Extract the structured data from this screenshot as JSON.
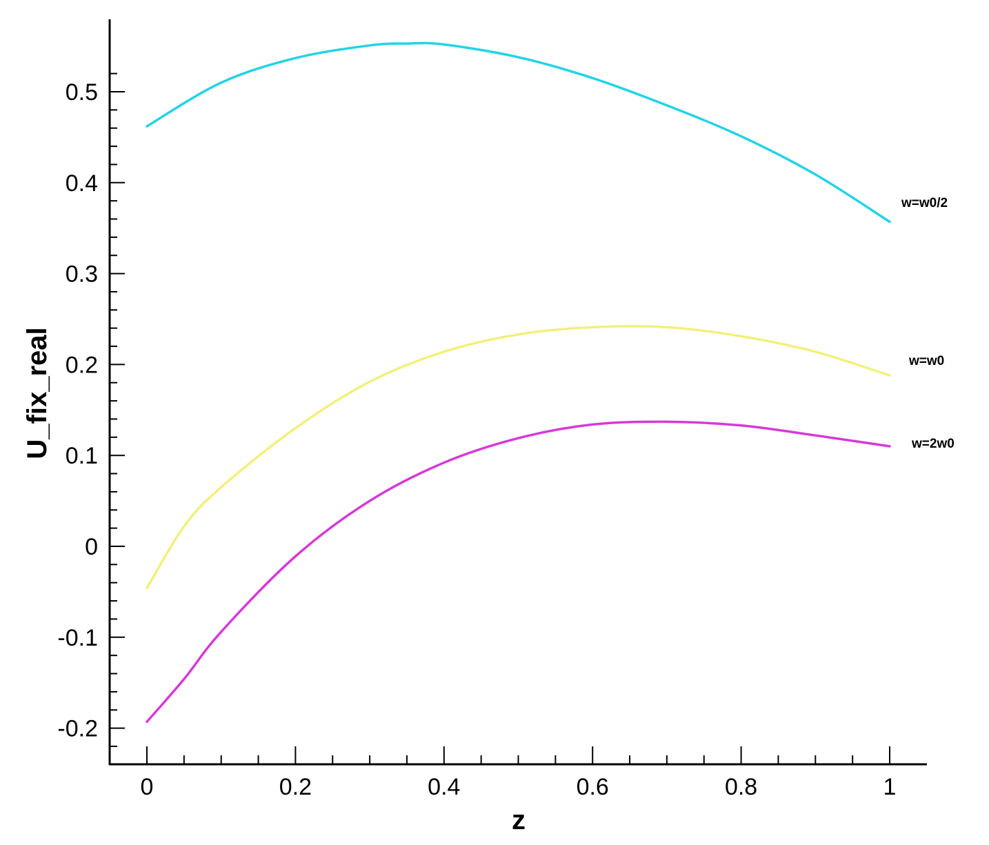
{
  "chart_data": {
    "type": "line",
    "xlabel": "z",
    "ylabel": "U_fix_real",
    "xlim": [
      -0.05,
      1.05
    ],
    "ylim": [
      -0.235,
      0.58
    ],
    "grid": false,
    "xticks": [
      0,
      0.2,
      0.4,
      0.6,
      0.8,
      1
    ],
    "xtick_labels": [
      "0",
      "0.2",
      "0.4",
      "0.6",
      "0.8",
      "1"
    ],
    "yticks": [
      -0.2,
      -0.1,
      0,
      0.1,
      0.2,
      0.3,
      0.4,
      0.5
    ],
    "ytick_labels": [
      "-0.2",
      "-0.1",
      "0",
      "0.1",
      "0.2",
      "0.3",
      "0.4",
      "0.5"
    ],
    "series": [
      {
        "name": "w=w0/2",
        "color": "#22d3e6",
        "x": [
          0,
          0.1,
          0.2,
          0.3,
          0.35,
          0.4,
          0.5,
          0.6,
          0.7,
          0.8,
          0.9,
          1.0
        ],
        "y": [
          0.462,
          0.51,
          0.537,
          0.551,
          0.553,
          0.552,
          0.538,
          0.515,
          0.485,
          0.451,
          0.409,
          0.357
        ]
      },
      {
        "name": "w=w0",
        "color": "#f2f07a",
        "x": [
          0,
          0.05,
          0.1,
          0.2,
          0.3,
          0.4,
          0.5,
          0.6,
          0.7,
          0.8,
          0.9,
          1.0
        ],
        "y": [
          -0.046,
          0.022,
          0.065,
          0.13,
          0.181,
          0.214,
          0.233,
          0.241,
          0.241,
          0.231,
          0.214,
          0.188
        ]
      },
      {
        "name": "w=2w0",
        "color": "#d63ad6",
        "x": [
          0,
          0.05,
          0.1,
          0.2,
          0.3,
          0.4,
          0.5,
          0.6,
          0.7,
          0.8,
          0.9,
          1.0
        ],
        "y": [
          -0.193,
          -0.146,
          -0.094,
          -0.011,
          0.05,
          0.092,
          0.119,
          0.134,
          0.137,
          0.133,
          0.122,
          0.11
        ]
      }
    ]
  }
}
